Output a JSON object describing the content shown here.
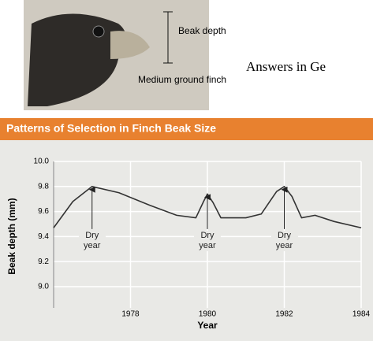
{
  "figure": {
    "beak_label": "Beak depth",
    "bird_label": "Medium ground finch"
  },
  "page_text": "Answers in Ge",
  "chart_data": {
    "type": "line",
    "title": "Patterns of Selection in Finch Beak Size",
    "x_label": "Year",
    "y_label": "Beak depth (mm)",
    "series": [
      {
        "name": "Beak depth",
        "color": "#333333",
        "x": [
          1976,
          1976.5,
          1977,
          1977.7,
          1978.5,
          1979.2,
          1979.7,
          1979.9,
          1980,
          1980.15,
          1980.35,
          1981,
          1981.4,
          1981.8,
          1982,
          1982.2,
          1982.45,
          1982.8,
          1983.3,
          1984
        ],
        "values": [
          9.47,
          9.68,
          9.8,
          9.75,
          9.65,
          9.57,
          9.55,
          9.68,
          9.74,
          9.67,
          9.55,
          9.55,
          9.58,
          9.76,
          9.8,
          9.72,
          9.55,
          9.57,
          9.52,
          9.47
        ]
      }
    ],
    "annotations": [
      {
        "text": "Dry year",
        "x": 1977,
        "y": 9.8
      },
      {
        "text": "Dry year",
        "x": 1980,
        "y": 9.74
      },
      {
        "text": "Dry year",
        "x": 1982,
        "y": 9.8
      }
    ],
    "xlim": [
      1976,
      1984
    ],
    "ylim": [
      8.83,
      10.0
    ],
    "xticks": [
      1978,
      1980,
      1982,
      1984
    ],
    "yticks": [
      {
        "value": 10.0,
        "label": "10.0"
      },
      {
        "value": 9.8,
        "label": "9.8"
      },
      {
        "value": 9.6,
        "label": "9.6"
      },
      {
        "value": 9.4,
        "label": "9.4"
      },
      {
        "value": 9.2,
        "label": "9.2"
      },
      {
        "value": 9.0,
        "label": "9.0"
      }
    ],
    "grid": true,
    "header_color": "#e8812f"
  }
}
